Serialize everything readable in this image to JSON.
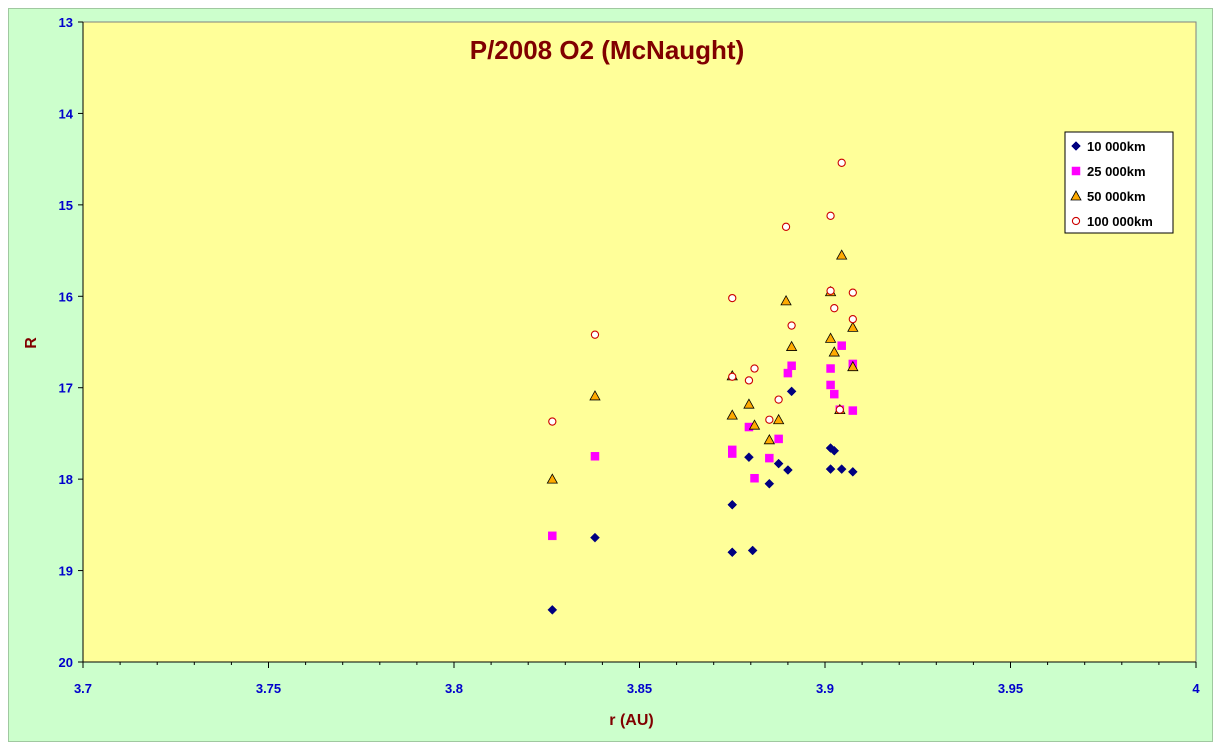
{
  "chart_data": {
    "type": "scatter",
    "title": "P/2008 O2 (McNaught)",
    "xlabel": "r (AU)",
    "ylabel": "R",
    "xlim": [
      3.7,
      4
    ],
    "ylim": [
      13,
      20
    ],
    "y_inverted": true,
    "x_ticks": [
      "3.7",
      "3.75",
      "3.8",
      "3.85",
      "3.9",
      "3.95",
      "4"
    ],
    "y_ticks": [
      "13",
      "14",
      "15",
      "16",
      "17",
      "18",
      "19",
      "20"
    ],
    "legend_position": "top-right",
    "colors": {
      "outer_background": "#ccffcc",
      "plot_background": "#ffff99",
      "title": "#800000",
      "ticks": "#0000cc"
    },
    "series": [
      {
        "name": "10 000km",
        "marker": "diamond",
        "color": "#000080",
        "points": [
          [
            3.8265,
            19.43
          ],
          [
            3.838,
            18.64
          ],
          [
            3.875,
            18.28
          ],
          [
            3.875,
            18.8
          ],
          [
            3.8805,
            18.78
          ],
          [
            3.8795,
            17.76
          ],
          [
            3.885,
            18.05
          ],
          [
            3.8875,
            17.83
          ],
          [
            3.89,
            17.9
          ],
          [
            3.891,
            17.04
          ],
          [
            3.9015,
            17.66
          ],
          [
            3.9025,
            17.69
          ],
          [
            3.9015,
            17.89
          ],
          [
            3.9045,
            17.89
          ],
          [
            3.9075,
            17.92
          ]
        ]
      },
      {
        "name": "25 000km",
        "marker": "square",
        "color": "#ff00ff",
        "points": [
          [
            3.8265,
            18.62
          ],
          [
            3.838,
            17.75
          ],
          [
            3.875,
            17.68
          ],
          [
            3.875,
            17.72
          ],
          [
            3.8795,
            17.43
          ],
          [
            3.881,
            17.99
          ],
          [
            3.885,
            17.77
          ],
          [
            3.8875,
            17.56
          ],
          [
            3.89,
            16.84
          ],
          [
            3.891,
            16.76
          ],
          [
            3.9015,
            16.79
          ],
          [
            3.9015,
            16.97
          ],
          [
            3.9025,
            17.07
          ],
          [
            3.9045,
            16.54
          ],
          [
            3.904,
            17.24
          ],
          [
            3.9075,
            16.74
          ],
          [
            3.9075,
            17.25
          ]
        ]
      },
      {
        "name": "50 000km",
        "marker": "triangle",
        "color": "#ffaa00",
        "points": [
          [
            3.8265,
            18.0
          ],
          [
            3.838,
            17.09
          ],
          [
            3.875,
            17.3
          ],
          [
            3.875,
            16.87
          ],
          [
            3.8795,
            17.18
          ],
          [
            3.881,
            17.41
          ],
          [
            3.885,
            17.57
          ],
          [
            3.8875,
            17.35
          ],
          [
            3.8895,
            16.05
          ],
          [
            3.891,
            16.55
          ],
          [
            3.9015,
            15.95
          ],
          [
            3.9015,
            16.46
          ],
          [
            3.9025,
            16.61
          ],
          [
            3.9045,
            15.55
          ],
          [
            3.904,
            17.24
          ],
          [
            3.9075,
            16.34
          ],
          [
            3.9075,
            16.77
          ]
        ]
      },
      {
        "name": "100 000km",
        "marker": "circle",
        "color": "#cc0000",
        "points": [
          [
            3.8265,
            17.37
          ],
          [
            3.838,
            16.42
          ],
          [
            3.875,
            16.02
          ],
          [
            3.875,
            16.88
          ],
          [
            3.8795,
            16.92
          ],
          [
            3.881,
            16.79
          ],
          [
            3.885,
            17.35
          ],
          [
            3.8875,
            17.13
          ],
          [
            3.8895,
            15.24
          ],
          [
            3.891,
            16.32
          ],
          [
            3.9015,
            15.12
          ],
          [
            3.9015,
            15.94
          ],
          [
            3.9025,
            16.13
          ],
          [
            3.9045,
            14.54
          ],
          [
            3.904,
            17.24
          ],
          [
            3.9075,
            15.96
          ],
          [
            3.9075,
            16.25
          ]
        ]
      }
    ]
  }
}
